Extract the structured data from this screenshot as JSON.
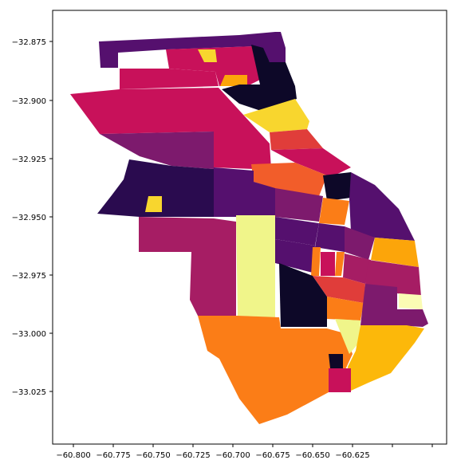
{
  "palette": {
    "black": "#0d0828",
    "deep_purple": "#2a0b4f",
    "purple": "#55106e",
    "violet": "#7d1a6d",
    "magenta": "#a61d64",
    "crimson": "#c8115a",
    "red": "#e03d3a",
    "red_orange": "#f25d2a",
    "orange": "#fb7d17",
    "amber": "#fca50a",
    "yellow": "#f8d62e",
    "pale_yellow": "#f0f58a",
    "cream": "#fbfcb4"
  },
  "axes": {
    "x_ticks": [
      "−60.800",
      "−60.775",
      "−60.750",
      "−60.725",
      "−60.700",
      "−60.675",
      "−60.650",
      "−60.625"
    ],
    "y_ticks": [
      "−32.875",
      "−32.900",
      "−32.925",
      "−32.950",
      "−32.975",
      "−33.000",
      "−33.025"
    ]
  }
}
